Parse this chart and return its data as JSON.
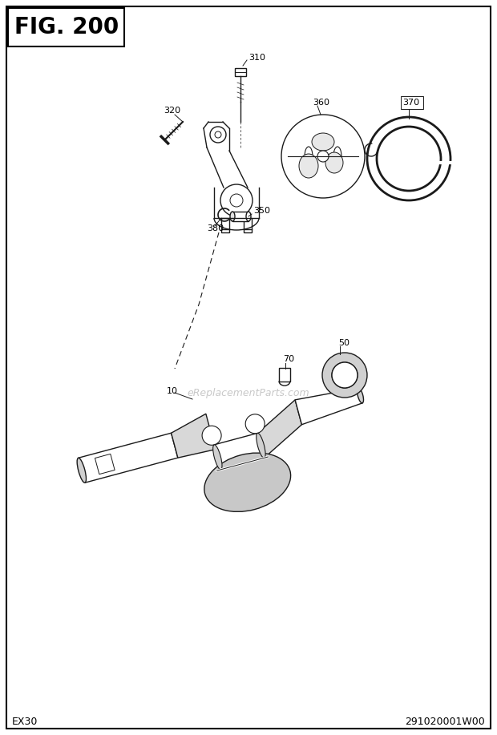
{
  "fig_label": "FIG. 200",
  "bottom_left": "EX30",
  "bottom_right": "291020001W00",
  "watermark": "eReplacementParts.com",
  "bg_color": "#ffffff",
  "border_color": "#000000",
  "text_color": "#000000",
  "lc": "#1a1a1a",
  "lw": 1.0,
  "figsize": [
    6.2,
    9.17
  ],
  "dpi": 100
}
